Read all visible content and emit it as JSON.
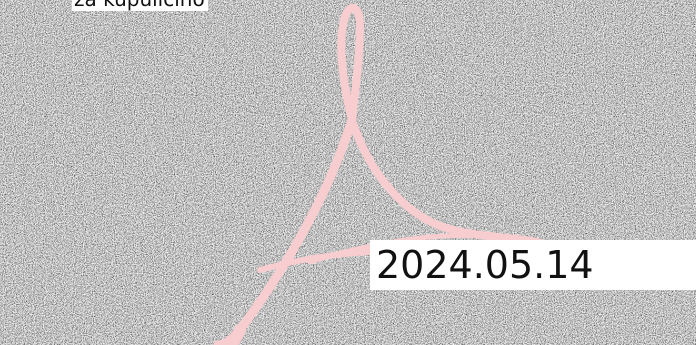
{
  "caption": {
    "text": "za kupulicino"
  },
  "date_stamp": {
    "text": "2024.05.14"
  },
  "logo": {
    "icon": "acrobat-ribbon-icon",
    "color": "#f7cdcf"
  },
  "background": {
    "pattern": "noise-texture",
    "dark": "#151515",
    "light": "#f2f2f2"
  }
}
